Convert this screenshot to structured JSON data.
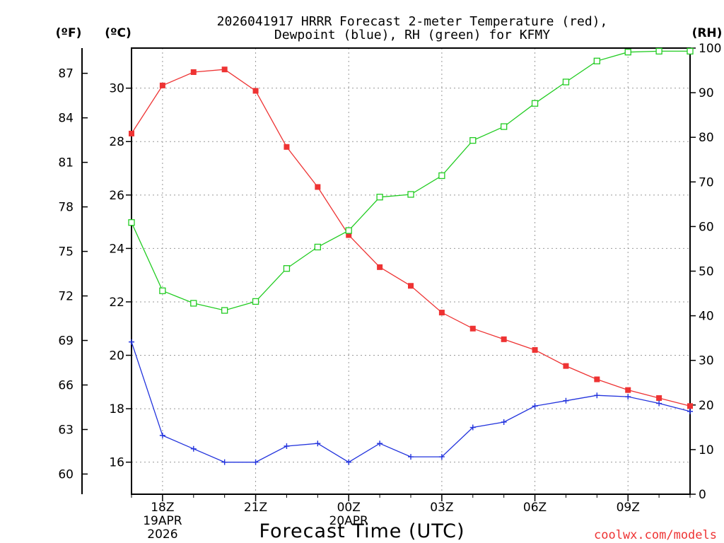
{
  "header": {
    "title_line1": "2026041917 HRRR Forecast 2-meter Temperature (red),",
    "title_line2": "Dewpoint (blue), RH (green) for KFMY"
  },
  "axis_units": {
    "fahrenheit": "(ºF)",
    "celsius": "(ºC)",
    "rh": "(RH)"
  },
  "footer": {
    "xlabel": "Forecast Time (UTC)",
    "watermark": "coolwx.com/models"
  },
  "colors": {
    "temperature": "#ee3333",
    "dewpoint": "#2233dd",
    "rh": "#22cc22",
    "grid": "#999999"
  },
  "chart_data": {
    "type": "line",
    "title": "2026041917 HRRR Forecast 2-meter Temperature (red), Dewpoint (blue), RH (green) for KFMY",
    "xlabel": "Forecast Time (UTC)",
    "x_hours": [
      0,
      1,
      2,
      3,
      4,
      5,
      6,
      7,
      8,
      9,
      10,
      11,
      12,
      13,
      14,
      15,
      16,
      17,
      18
    ],
    "xlim": [
      0,
      18
    ],
    "x_ticks": [
      {
        "hour": 1,
        "label": "18Z",
        "sub1": "19APR",
        "sub2": "2026"
      },
      {
        "hour": 4,
        "label": "21Z",
        "sub1": "",
        "sub2": ""
      },
      {
        "hour": 7,
        "label": "00Z",
        "sub1": "20APR",
        "sub2": ""
      },
      {
        "hour": 10,
        "label": "03Z",
        "sub1": "",
        "sub2": ""
      },
      {
        "hour": 13,
        "label": "06Z",
        "sub1": "",
        "sub2": ""
      },
      {
        "hour": 16,
        "label": "09Z",
        "sub1": "",
        "sub2": ""
      }
    ],
    "y_celsius": {
      "ylim": [
        14.8,
        31.5
      ],
      "ticks": [
        16,
        18,
        20,
        22,
        24,
        26,
        28,
        30
      ],
      "tick_labels": [
        "16",
        "18",
        "20",
        "22",
        "24",
        "26",
        "28",
        "30"
      ]
    },
    "y_fahrenheit": {
      "ticks": [
        60,
        63,
        66,
        69,
        72,
        75,
        78,
        81,
        84,
        87
      ],
      "tick_labels": [
        "60",
        "63",
        "66",
        "69",
        "72",
        "75",
        "78",
        "81",
        "84",
        "87"
      ]
    },
    "y_rh": {
      "ylim": [
        0,
        100
      ],
      "ticks": [
        0,
        10,
        20,
        30,
        40,
        50,
        60,
        70,
        80,
        90,
        100
      ],
      "tick_labels": [
        "0",
        "10",
        "20",
        "30",
        "40",
        "50",
        "60",
        "70",
        "80",
        "90",
        "100"
      ]
    },
    "series": [
      {
        "name": "Temperature",
        "axis": "celsius",
        "marker": "filled-square",
        "values": [
          28.3,
          30.1,
          30.6,
          30.7,
          29.9,
          27.8,
          26.3,
          24.5,
          23.3,
          22.6,
          21.6,
          21.0,
          20.6,
          20.2,
          19.6,
          19.1,
          18.7,
          18.4,
          18.1
        ]
      },
      {
        "name": "Dewpoint",
        "axis": "celsius",
        "marker": "plus",
        "values": [
          20.5,
          17.0,
          16.5,
          16.0,
          16.0,
          16.6,
          16.7,
          16.0,
          16.7,
          16.2,
          16.2,
          17.3,
          17.5,
          18.1,
          18.3,
          18.5,
          18.45,
          18.2,
          17.9
        ]
      },
      {
        "name": "Relative Humidity",
        "axis": "rh",
        "marker": "open-square",
        "values": [
          60.9,
          45.6,
          42.8,
          41.2,
          43.2,
          50.6,
          55.4,
          59.1,
          66.6,
          67.2,
          71.4,
          79.3,
          82.4,
          87.6,
          92.4,
          97.1,
          99.1,
          99.3,
          99.3
        ]
      }
    ]
  }
}
